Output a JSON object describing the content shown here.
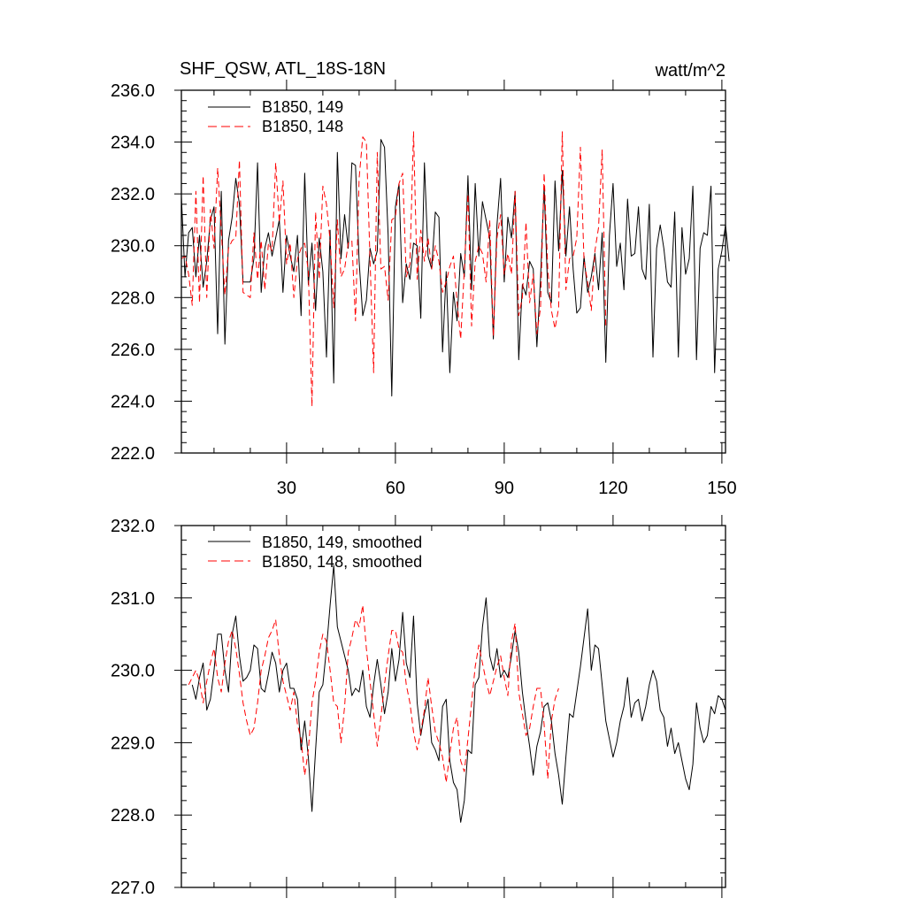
{
  "chart_data": [
    {
      "type": "line",
      "title": "SHF_QSW, ATL_18S-18N",
      "units": "watt/m^2",
      "xlabel": "",
      "ylabel": "",
      "xlim": [
        1,
        151
      ],
      "ylim": [
        222.0,
        236.0
      ],
      "xticks": [
        30,
        60,
        90,
        120,
        150
      ],
      "yticks": [
        "222.0",
        "224.0",
        "226.0",
        "228.0",
        "230.0",
        "232.0",
        "234.0",
        "236.0"
      ],
      "legend_position": "top-left",
      "series": [
        {
          "name": "B1850, 149",
          "color": "#000000",
          "dash": "solid",
          "x_start": 1,
          "values": [
            231.9,
            228.8,
            230.5,
            230.7,
            228.8,
            230.4,
            228.4,
            229.4,
            231.0,
            231.5,
            226.6,
            232.1,
            226.2,
            230.2,
            231.1,
            232.6,
            231.6,
            228.6,
            228.6,
            228.6,
            229.5,
            233.2,
            228.2,
            229.9,
            230.5,
            229.6,
            230.3,
            231.0,
            228.2,
            230.4,
            229.6,
            229.0,
            230.4,
            227.3,
            232.8,
            228.5,
            230.1,
            227.5,
            230.3,
            229.0,
            225.7,
            230.6,
            224.7,
            233.6,
            229.5,
            231.2,
            229.9,
            233.2,
            233.1,
            229.4,
            227.3,
            227.9,
            229.9,
            229.3,
            229.8,
            234.1,
            233.8,
            230.4,
            224.2,
            231.5,
            232.4,
            227.8,
            229.3,
            228.7,
            230.1,
            230.0,
            227.2,
            233.2,
            229.6,
            229.1,
            231.3,
            231.1,
            225.9,
            229.0,
            225.1,
            228.2,
            227.1,
            229.7,
            228.8,
            232.7,
            228.3,
            232.4,
            229.6,
            231.7,
            231.0,
            230.3,
            226.4,
            230.8,
            232.6,
            228.6,
            231.1,
            230.3,
            232.1,
            225.6,
            228.5,
            228.1,
            229.4,
            229.1,
            226.1,
            228.7,
            232.3,
            228.2,
            227.8,
            232.5,
            229.8,
            232.9,
            229.6,
            231.5,
            229.1,
            227.4,
            227.6,
            229.6,
            228.2,
            228.8,
            229.7,
            228.3,
            230.5,
            225.5,
            230.4,
            232.4,
            229.2,
            230.1,
            228.3,
            231.8,
            229.6,
            229.7,
            231.5,
            229.1,
            228.7,
            231.6,
            225.7,
            229.9,
            230.8,
            229.9,
            228.6,
            228.4,
            231.3,
            225.7,
            230.7,
            228.9,
            229.5,
            232.3,
            225.6,
            229.9,
            230.5,
            230.4,
            232.3,
            225.1,
            229.1,
            229.8,
            230.8,
            229.4
          ]
        },
        {
          "name": "B1850, 148",
          "color": "#ff0000",
          "dash": "dashed",
          "x_start": 1,
          "values": [
            229.5,
            229.6,
            228.9,
            227.7,
            232.1,
            227.8,
            232.7,
            228.0,
            231.4,
            229.9,
            233.0,
            230.6,
            228.1,
            229.9,
            230.2,
            230.3,
            233.3,
            228.2,
            228.1,
            228.0,
            230.5,
            228.7,
            230.2,
            228.3,
            230.1,
            229.8,
            233.2,
            230.9,
            232.5,
            229.3,
            230.1,
            228.0,
            229.5,
            229.9,
            230.1,
            229.0,
            223.8,
            231.3,
            228.7,
            232.3,
            231.6,
            230.2,
            227.6,
            231.0,
            228.8,
            229.1,
            230.1,
            230.2,
            227.1,
            232.6,
            234.2,
            234.0,
            229.5,
            225.1,
            233.6,
            229.1,
            229.2,
            227.9,
            231.0,
            231.1,
            232.4,
            232.8,
            228.8,
            229.3,
            234.4,
            228.7,
            230.6,
            229.4,
            230.3,
            229.1,
            230.0,
            229.4,
            228.2,
            228.6,
            229.2,
            229.6,
            227.8,
            226.4,
            229.1,
            232.0,
            226.9,
            229.4,
            230.0,
            229.7,
            228.6,
            231.0,
            226.5,
            230.3,
            231.2,
            228.9,
            229.7,
            228.9,
            232.1,
            227.3,
            228.0,
            230.9,
            227.8,
            228.9,
            226.6,
            227.6,
            232.8,
            229.1,
            227.5,
            226.8,
            227.6,
            234.4,
            228.3,
            229.5,
            229.6,
            230.3,
            233.8,
            229.4,
            228.6,
            227.5,
            229.8,
            230.7,
            233.7,
            226.9
          ]
        }
      ]
    },
    {
      "type": "line",
      "title": "",
      "xlabel": "",
      "ylabel": "",
      "xlim": [
        1,
        151
      ],
      "ylim": [
        227.0,
        232.0
      ],
      "xticks": [
        30,
        60,
        90,
        120,
        150
      ],
      "yticks": [
        "227.0",
        "228.0",
        "229.0",
        "230.0",
        "231.0",
        "232.0"
      ],
      "legend_position": "top-left",
      "series": [
        {
          "name": "B1850, 149, smoothed",
          "color": "#000000",
          "dash": "solid",
          "x_start": 4,
          "values": [
            229.8,
            229.6,
            229.9,
            230.1,
            229.45,
            229.6,
            230.0,
            230.5,
            230.5,
            230.0,
            229.7,
            230.5,
            230.75,
            230.2,
            229.85,
            229.9,
            230.0,
            230.35,
            230.3,
            229.75,
            229.7,
            229.95,
            230.25,
            230.1,
            229.7,
            230.0,
            230.1,
            229.75,
            229.75,
            229.6,
            228.9,
            229.3,
            228.8,
            228.05,
            228.9,
            229.7,
            229.8,
            230.3,
            230.9,
            231.45,
            230.6,
            230.4,
            230.2,
            230.0,
            229.65,
            229.75,
            229.7,
            230.0,
            229.5,
            229.35,
            229.8,
            230.15,
            229.8,
            229.4,
            229.7,
            230.3,
            229.85,
            230.15,
            230.8,
            230.1,
            229.9,
            230.75,
            229.55,
            229.1,
            229.4,
            229.6,
            229.0,
            228.9,
            228.75,
            229.5,
            229.6,
            228.75,
            228.45,
            228.35,
            227.9,
            228.2,
            228.9,
            228.85,
            229.8,
            229.9,
            230.6,
            231.0,
            230.2,
            230.0,
            230.3,
            229.9,
            230.0,
            229.9,
            230.2,
            230.55,
            230.25,
            229.7,
            229.3,
            228.95,
            228.55,
            228.95,
            229.15,
            229.5,
            229.55,
            229.3,
            228.85,
            228.55,
            228.15,
            228.8,
            229.4,
            229.35,
            229.7,
            230.05,
            230.45,
            230.85,
            230.0,
            230.35,
            230.3,
            229.8,
            229.3,
            229.05,
            228.8,
            229.0,
            229.3,
            229.5,
            229.9,
            229.35,
            229.55,
            229.6,
            229.3,
            229.5,
            229.8,
            230.0,
            229.85,
            229.45,
            229.35,
            228.95,
            229.2,
            228.85,
            229.0,
            228.75,
            228.5,
            228.35,
            228.7,
            229.55,
            229.2,
            229.0,
            229.1,
            229.5,
            229.4,
            229.65,
            229.6,
            229.45
          ]
        },
        {
          "name": "B1850, 148, smoothed",
          "color": "#ff0000",
          "dash": "dashed",
          "x_start": 3,
          "values": [
            229.8,
            229.9,
            230.0,
            229.85,
            229.55,
            229.85,
            230.1,
            230.3,
            229.9,
            229.7,
            230.1,
            230.4,
            230.55,
            230.3,
            229.95,
            229.55,
            229.3,
            229.1,
            229.2,
            229.55,
            230.0,
            230.2,
            230.45,
            230.55,
            230.7,
            230.2,
            229.85,
            229.65,
            229.45,
            229.7,
            229.25,
            229.05,
            228.55,
            228.9,
            229.55,
            229.85,
            230.25,
            230.5,
            230.4,
            230.0,
            229.55,
            229.5,
            229.0,
            229.5,
            230.25,
            230.45,
            230.7,
            230.6,
            230.9,
            230.3,
            229.85,
            229.4,
            228.95,
            229.35,
            229.8,
            230.2,
            230.55,
            230.55,
            230.3,
            230.25,
            229.8,
            229.55,
            229.15,
            228.9,
            229.15,
            229.45,
            229.9,
            229.5,
            229.15,
            229.0,
            228.8,
            228.45,
            228.85,
            229.2,
            229.35,
            228.75,
            228.6,
            229.05,
            229.55,
            230.05,
            230.35,
            230.1,
            229.85,
            229.65,
            229.85,
            230.05,
            230.2,
            229.9,
            229.65,
            230.4,
            230.65,
            229.7,
            229.4,
            229.1,
            229.2,
            229.5,
            229.75,
            229.75,
            229.25,
            228.5,
            229.3,
            229.6,
            229.75
          ]
        }
      ]
    }
  ]
}
